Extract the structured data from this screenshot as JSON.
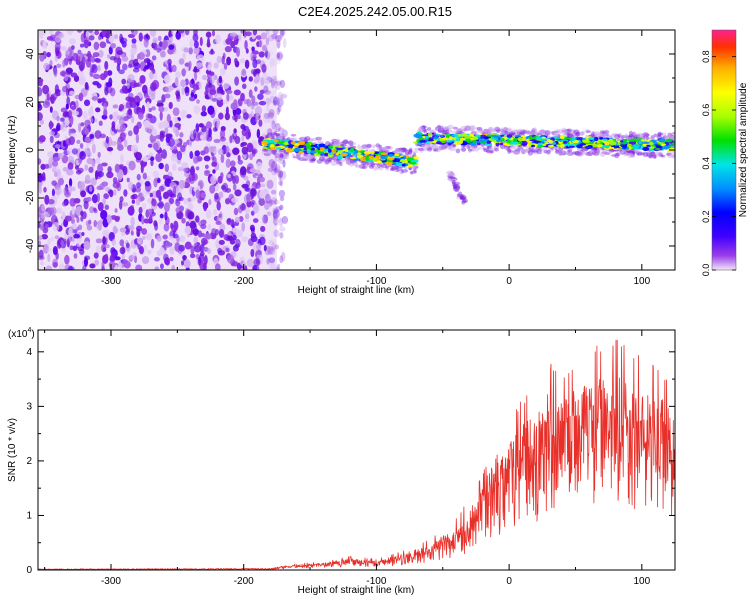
{
  "title": "C2E4.2025.242.05.00.R15",
  "chart_data": [
    {
      "type": "heatmap",
      "title": "",
      "xlabel": "Height of straight line (km)",
      "ylabel": "Frequency (Hz)",
      "xlim": [
        -355,
        125
      ],
      "ylim": [
        -50,
        50
      ],
      "xticks": [
        -300,
        -200,
        -100,
        0,
        100
      ],
      "yticks": [
        -40,
        -20,
        0,
        20,
        40
      ],
      "colorbar": {
        "label": "Normalized spectral amplitude",
        "range": [
          0,
          0.9
        ],
        "ticks": [
          0.0,
          0.2,
          0.4,
          0.6,
          0.8
        ],
        "colors": [
          "#e8d0f5",
          "#8f2be2",
          "#3f00ff",
          "#0000ff",
          "#0090ff",
          "#00e5e5",
          "#00e000",
          "#a8ff00",
          "#ffff00",
          "#ffb000",
          "#ff3000",
          "#ff2090"
        ]
      },
      "regions": [
        {
          "name": "broadband noise",
          "x": [
            -355,
            -175
          ],
          "freq": [
            -50,
            50
          ],
          "amplitude": 0.1
        },
        {
          "name": "signal band segment 1",
          "x": [
            -185,
            -70
          ],
          "freq_start": 3,
          "freq_end": -5,
          "amplitude": 0.55
        },
        {
          "name": "signal band tail",
          "x": [
            -45,
            -33
          ],
          "freq_start": -10,
          "freq_end": -22,
          "amplitude": 0.1
        },
        {
          "name": "signal band segment 2",
          "x": [
            -70,
            125
          ],
          "freq_start": 5,
          "freq_end": 2,
          "amplitude": 0.5
        }
      ]
    },
    {
      "type": "line",
      "title": "",
      "xlabel": "Height of straight line (km)",
      "ylabel": "SNR (10 * v/v)",
      "y_multiplier": "(x10",
      "y_multiplier_exp": "4",
      "y_multiplier_close": ")",
      "xlim": [
        -355,
        125
      ],
      "ylim": [
        0,
        4.4
      ],
      "xticks": [
        -300,
        -200,
        -100,
        0,
        100
      ],
      "yticks": [
        0,
        1,
        2,
        3,
        4
      ],
      "series": [
        {
          "name": "SNR",
          "color": "#e8302a",
          "envelope_x": [
            -355,
            -180,
            -160,
            -140,
            -120,
            -100,
            -80,
            -60,
            -50,
            -40,
            -30,
            -20,
            -10,
            0,
            10,
            20,
            30,
            40,
            50,
            60,
            70,
            80,
            90,
            100,
            110,
            125
          ],
          "envelope_max": [
            0.02,
            0.03,
            0.12,
            0.15,
            0.25,
            0.2,
            0.35,
            0.55,
            0.75,
            0.95,
            1.3,
            1.8,
            2.5,
            2.7,
            3.2,
            3.3,
            3.9,
            3.6,
            3.9,
            4.0,
            4.2,
            4.35,
            4.1,
            3.9,
            3.8,
            3.5
          ]
        }
      ]
    }
  ]
}
